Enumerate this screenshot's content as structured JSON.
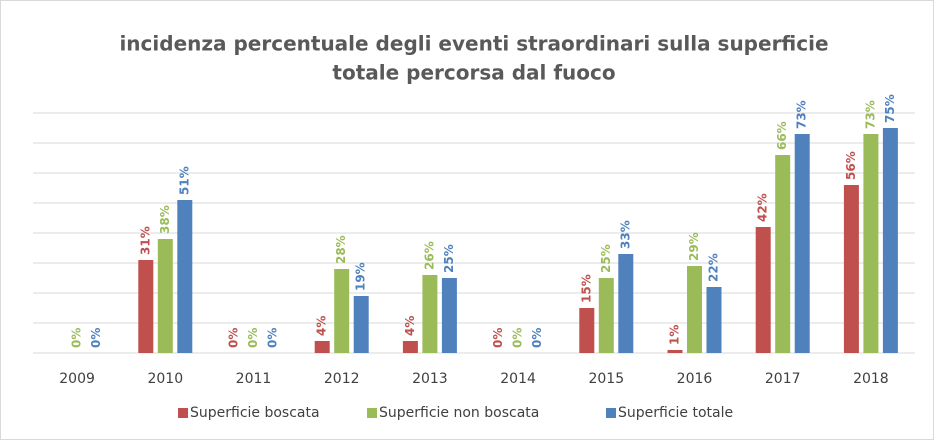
{
  "chart_data": {
    "type": "bar",
    "title": [
      "incidenza percentuale degli eventi straordinari sulla superficie",
      "totale percorsa dal fuoco"
    ],
    "categories": [
      "2009",
      "2010",
      "2011",
      "2012",
      "2013",
      "2014",
      "2015",
      "2016",
      "2017",
      "2018"
    ],
    "series": [
      {
        "name": "Superficie boscata",
        "color": "#c0504d",
        "values": [
          null,
          31,
          0,
          4,
          4,
          0,
          15,
          1,
          42,
          56
        ],
        "value_labels": [
          null,
          "31%",
          "0%",
          "4%",
          "4%",
          "0%",
          "15%",
          "1%",
          "42%",
          "56%"
        ]
      },
      {
        "name": "Superficie non boscata",
        "color": "#9bbb59",
        "values": [
          0,
          38,
          0,
          28,
          26,
          0,
          25,
          29,
          66,
          73
        ],
        "value_labels": [
          "0%",
          "38%",
          "0%",
          "28%",
          "26%",
          "0%",
          "25%",
          "29%",
          "66%",
          "73%"
        ]
      },
      {
        "name": "Superficie totale",
        "color": "#4f81bd",
        "values": [
          0,
          51,
          0,
          19,
          25,
          0,
          33,
          22,
          73,
          75
        ],
        "value_labels": [
          "0%",
          "51%",
          "0%",
          "19%",
          "25%",
          "0%",
          "33%",
          "22%",
          "73%",
          "75%"
        ]
      }
    ],
    "ylim": [
      0,
      80
    ],
    "yticks": [
      0,
      10,
      20,
      30,
      40,
      50,
      60,
      70,
      80
    ],
    "grid": true,
    "legend": "bottom"
  }
}
